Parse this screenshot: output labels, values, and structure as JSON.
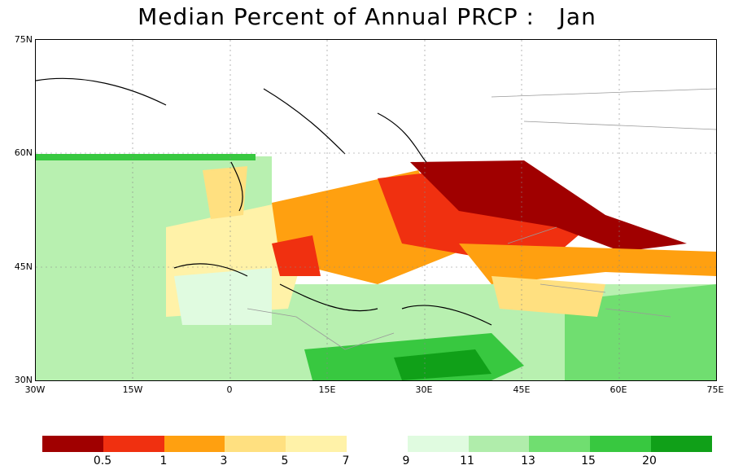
{
  "title": "Median Percent of Annual PRCP :   Jan",
  "map": {
    "lat_labels": [
      "75N",
      "60N",
      "45N",
      "30N"
    ],
    "lon_labels": [
      "30W",
      "15W",
      "0",
      "15E",
      "30E",
      "45E",
      "60E",
      "75E"
    ]
  },
  "legend": {
    "colors": [
      "#a00000",
      "#f03010",
      "#ffa010",
      "#ffe080",
      "#fff2a8",
      null,
      "#e0fbe0",
      "#b0edab",
      "#70de70",
      "#38c840",
      "#10a018"
    ],
    "labels": [
      "0.5",
      "1",
      "3",
      "5",
      "7",
      "9",
      "11",
      "13",
      "15",
      "20"
    ]
  },
  "palette": {
    "ocean_green": "#b8f0b0",
    "dry_dark": "#a00000",
    "wet_dark": "#10a018"
  }
}
